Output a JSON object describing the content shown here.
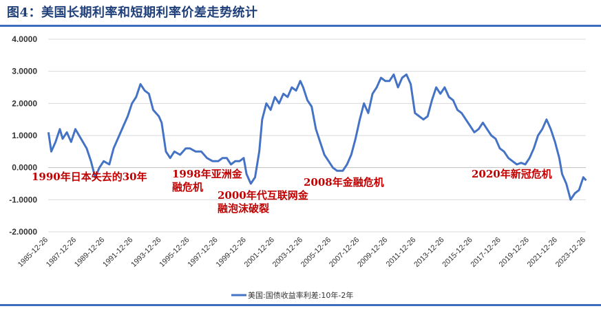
{
  "title": "图4：美国长期利率和短期利率价差走势统计",
  "colors": {
    "line": "#4472c4",
    "annotation": "#c00000",
    "grid": "#d9d9d9",
    "rule": "#3a6bbf",
    "title": "#1f3f7a"
  },
  "chart_data": {
    "type": "line",
    "title": "图4：美国长期利率和短期利率价差走势统计",
    "xlabel": "",
    "ylabel": "",
    "ylim": [
      -2,
      4
    ],
    "yticks": [
      4,
      3,
      2,
      1,
      0,
      -1,
      -2
    ],
    "ytick_labels": [
      "4.0000",
      "3.0000",
      "2.0000",
      "1.0000",
      "0.0000",
      "-1.0000",
      "-2.0000"
    ],
    "xlim": [
      1985.98,
      2023.98
    ],
    "x_tick_labels": [
      "1985-12-26",
      "1987-12-26",
      "1989-12-26",
      "1991-12-26",
      "1993-12-26",
      "1995-12-26",
      "1997-12-26",
      "1999-12-26",
      "2001-12-26",
      "2003-12-26",
      "2005-12-26",
      "2007-12-26",
      "2009-12-26",
      "2011-12-26",
      "2013-12-26",
      "2015-12-26",
      "2017-12-26",
      "2019-12-26",
      "2021-12-26",
      "2023-12-26"
    ],
    "grid": true,
    "legend": "bottom-center",
    "series": [
      {
        "name": "美国:国债收益率利差:10年-2年",
        "x": [
          1986.0,
          1986.2,
          1986.5,
          1986.8,
          1987.0,
          1987.3,
          1987.6,
          1987.9,
          1988.3,
          1988.7,
          1989.0,
          1989.3,
          1989.6,
          1989.9,
          1990.3,
          1990.6,
          1991.0,
          1991.3,
          1991.6,
          1991.9,
          1992.2,
          1992.5,
          1992.8,
          1993.1,
          1993.4,
          1993.8,
          1994.0,
          1994.3,
          1994.6,
          1994.9,
          1995.3,
          1995.7,
          1996.0,
          1996.4,
          1996.8,
          1997.2,
          1997.6,
          1998.0,
          1998.3,
          1998.6,
          1998.9,
          1999.2,
          1999.5,
          1999.8,
          2000.0,
          2000.3,
          2000.6,
          2000.9,
          2001.1,
          2001.4,
          2001.7,
          2002.0,
          2002.3,
          2002.6,
          2002.9,
          2003.2,
          2003.5,
          2003.8,
          2004.0,
          2004.3,
          2004.6,
          2004.9,
          2005.2,
          2005.5,
          2005.8,
          2006.1,
          2006.4,
          2006.8,
          2007.1,
          2007.4,
          2007.7,
          2008.0,
          2008.3,
          2008.6,
          2008.9,
          2009.2,
          2009.5,
          2009.8,
          2010.1,
          2010.4,
          2010.7,
          2011.0,
          2011.3,
          2011.6,
          2011.9,
          2012.2,
          2012.5,
          2012.8,
          2013.1,
          2013.4,
          2013.7,
          2014.0,
          2014.3,
          2014.6,
          2014.9,
          2015.2,
          2015.5,
          2015.8,
          2016.1,
          2016.4,
          2016.7,
          2017.0,
          2017.3,
          2017.6,
          2017.9,
          2018.2,
          2018.5,
          2018.8,
          2019.1,
          2019.4,
          2019.7,
          2020.0,
          2020.3,
          2020.6,
          2020.9,
          2021.2,
          2021.5,
          2021.8,
          2022.1,
          2022.3,
          2022.6,
          2022.9,
          2023.2,
          2023.5,
          2023.8,
          2024.0
        ],
        "values": [
          1.1,
          0.5,
          0.8,
          1.2,
          0.9,
          1.1,
          0.8,
          1.2,
          0.9,
          0.6,
          0.2,
          -0.3,
          0.0,
          0.2,
          0.1,
          0.6,
          1.0,
          1.3,
          1.6,
          2.0,
          2.2,
          2.6,
          2.4,
          2.3,
          1.8,
          1.6,
          1.4,
          0.5,
          0.3,
          0.5,
          0.4,
          0.6,
          0.6,
          0.5,
          0.5,
          0.3,
          0.2,
          0.2,
          0.3,
          0.3,
          0.1,
          0.2,
          0.2,
          0.3,
          -0.2,
          -0.5,
          -0.3,
          0.5,
          1.5,
          2.0,
          1.8,
          2.2,
          2.0,
          2.3,
          2.2,
          2.5,
          2.4,
          2.7,
          2.5,
          2.1,
          1.9,
          1.2,
          0.8,
          0.4,
          0.2,
          0.0,
          -0.1,
          -0.1,
          0.1,
          0.4,
          0.9,
          1.5,
          2.0,
          1.7,
          2.3,
          2.5,
          2.8,
          2.7,
          2.7,
          2.9,
          2.5,
          2.8,
          2.9,
          2.6,
          1.7,
          1.6,
          1.5,
          1.6,
          2.1,
          2.5,
          2.3,
          2.5,
          2.2,
          2.1,
          1.8,
          1.7,
          1.5,
          1.3,
          1.1,
          1.2,
          1.4,
          1.2,
          1.0,
          0.9,
          0.6,
          0.5,
          0.3,
          0.2,
          0.1,
          0.15,
          0.1,
          0.3,
          0.6,
          1.0,
          1.2,
          1.5,
          1.2,
          0.8,
          0.3,
          -0.2,
          -0.5,
          -1.0,
          -0.8,
          -0.7,
          -0.3,
          -0.4
        ]
      }
    ],
    "annotations": [
      {
        "lines": [
          "1990年日本失去的30年"
        ]
      },
      {
        "lines": [
          "1998年亚洲金",
          "融危机"
        ]
      },
      {
        "lines": [
          "2000年代互联网金",
          "融泡沫破裂"
        ]
      },
      {
        "lines": [
          "2008年金融危机"
        ]
      },
      {
        "lines": [
          "2020年新冠危机"
        ]
      }
    ]
  }
}
